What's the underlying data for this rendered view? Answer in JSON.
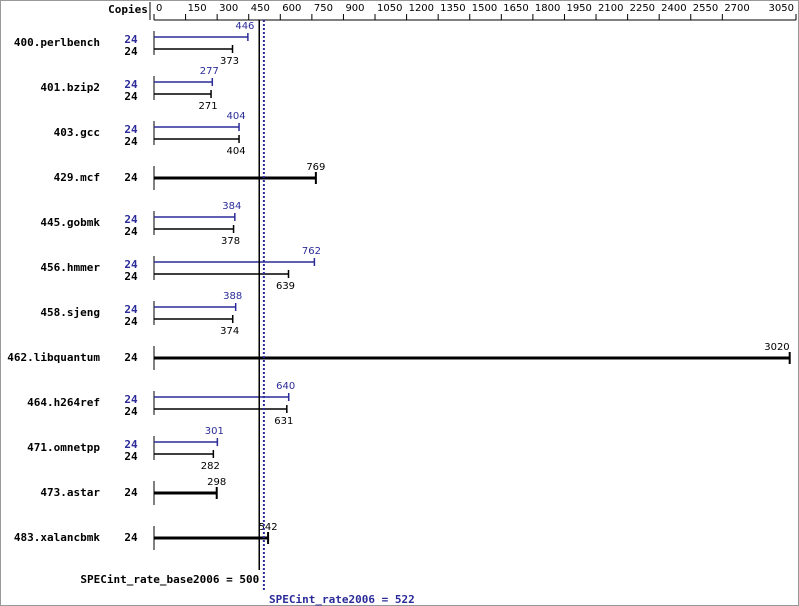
{
  "chart_data": {
    "type": "bar",
    "orientation": "horizontal",
    "x_label": "Copies",
    "categories": [
      "400.perlbench",
      "401.bzip2",
      "403.gcc",
      "429.mcf",
      "445.gobmk",
      "456.hmmer",
      "458.sjeng",
      "462.libquantum",
      "464.h264ref",
      "471.omnetpp",
      "473.astar",
      "483.xalancbmk"
    ],
    "series": [
      {
        "color": "#2b2b99",
        "values": [
          446,
          277,
          404,
          null,
          384,
          762,
          388,
          null,
          640,
          301,
          null,
          null
        ],
        "copies": [
          24,
          24,
          24,
          null,
          24,
          24,
          24,
          null,
          24,
          24,
          null,
          null
        ]
      },
      {
        "color": "#000000",
        "values": [
          373,
          271,
          404,
          769,
          378,
          639,
          374,
          3020,
          631,
          282,
          298,
          542
        ],
        "copies": [
          24,
          24,
          24,
          24,
          24,
          24,
          24,
          24,
          24,
          24,
          24,
          24
        ]
      }
    ],
    "xlim": [
      0,
      3050
    ],
    "xticks": [
      0,
      150,
      300,
      450,
      600,
      750,
      900,
      1050,
      1200,
      1350,
      1500,
      1650,
      1800,
      1950,
      2100,
      2250,
      2400,
      2550,
      2700,
      3050
    ],
    "reference_lines": [
      {
        "label": "SPECint_rate_base2006 = 500",
        "value": 500,
        "color": "#000000",
        "style": "solid"
      },
      {
        "label": "SPECint_rate2006 = 522",
        "value": 522,
        "color": "#2b2b99",
        "style": "dotted"
      }
    ]
  }
}
